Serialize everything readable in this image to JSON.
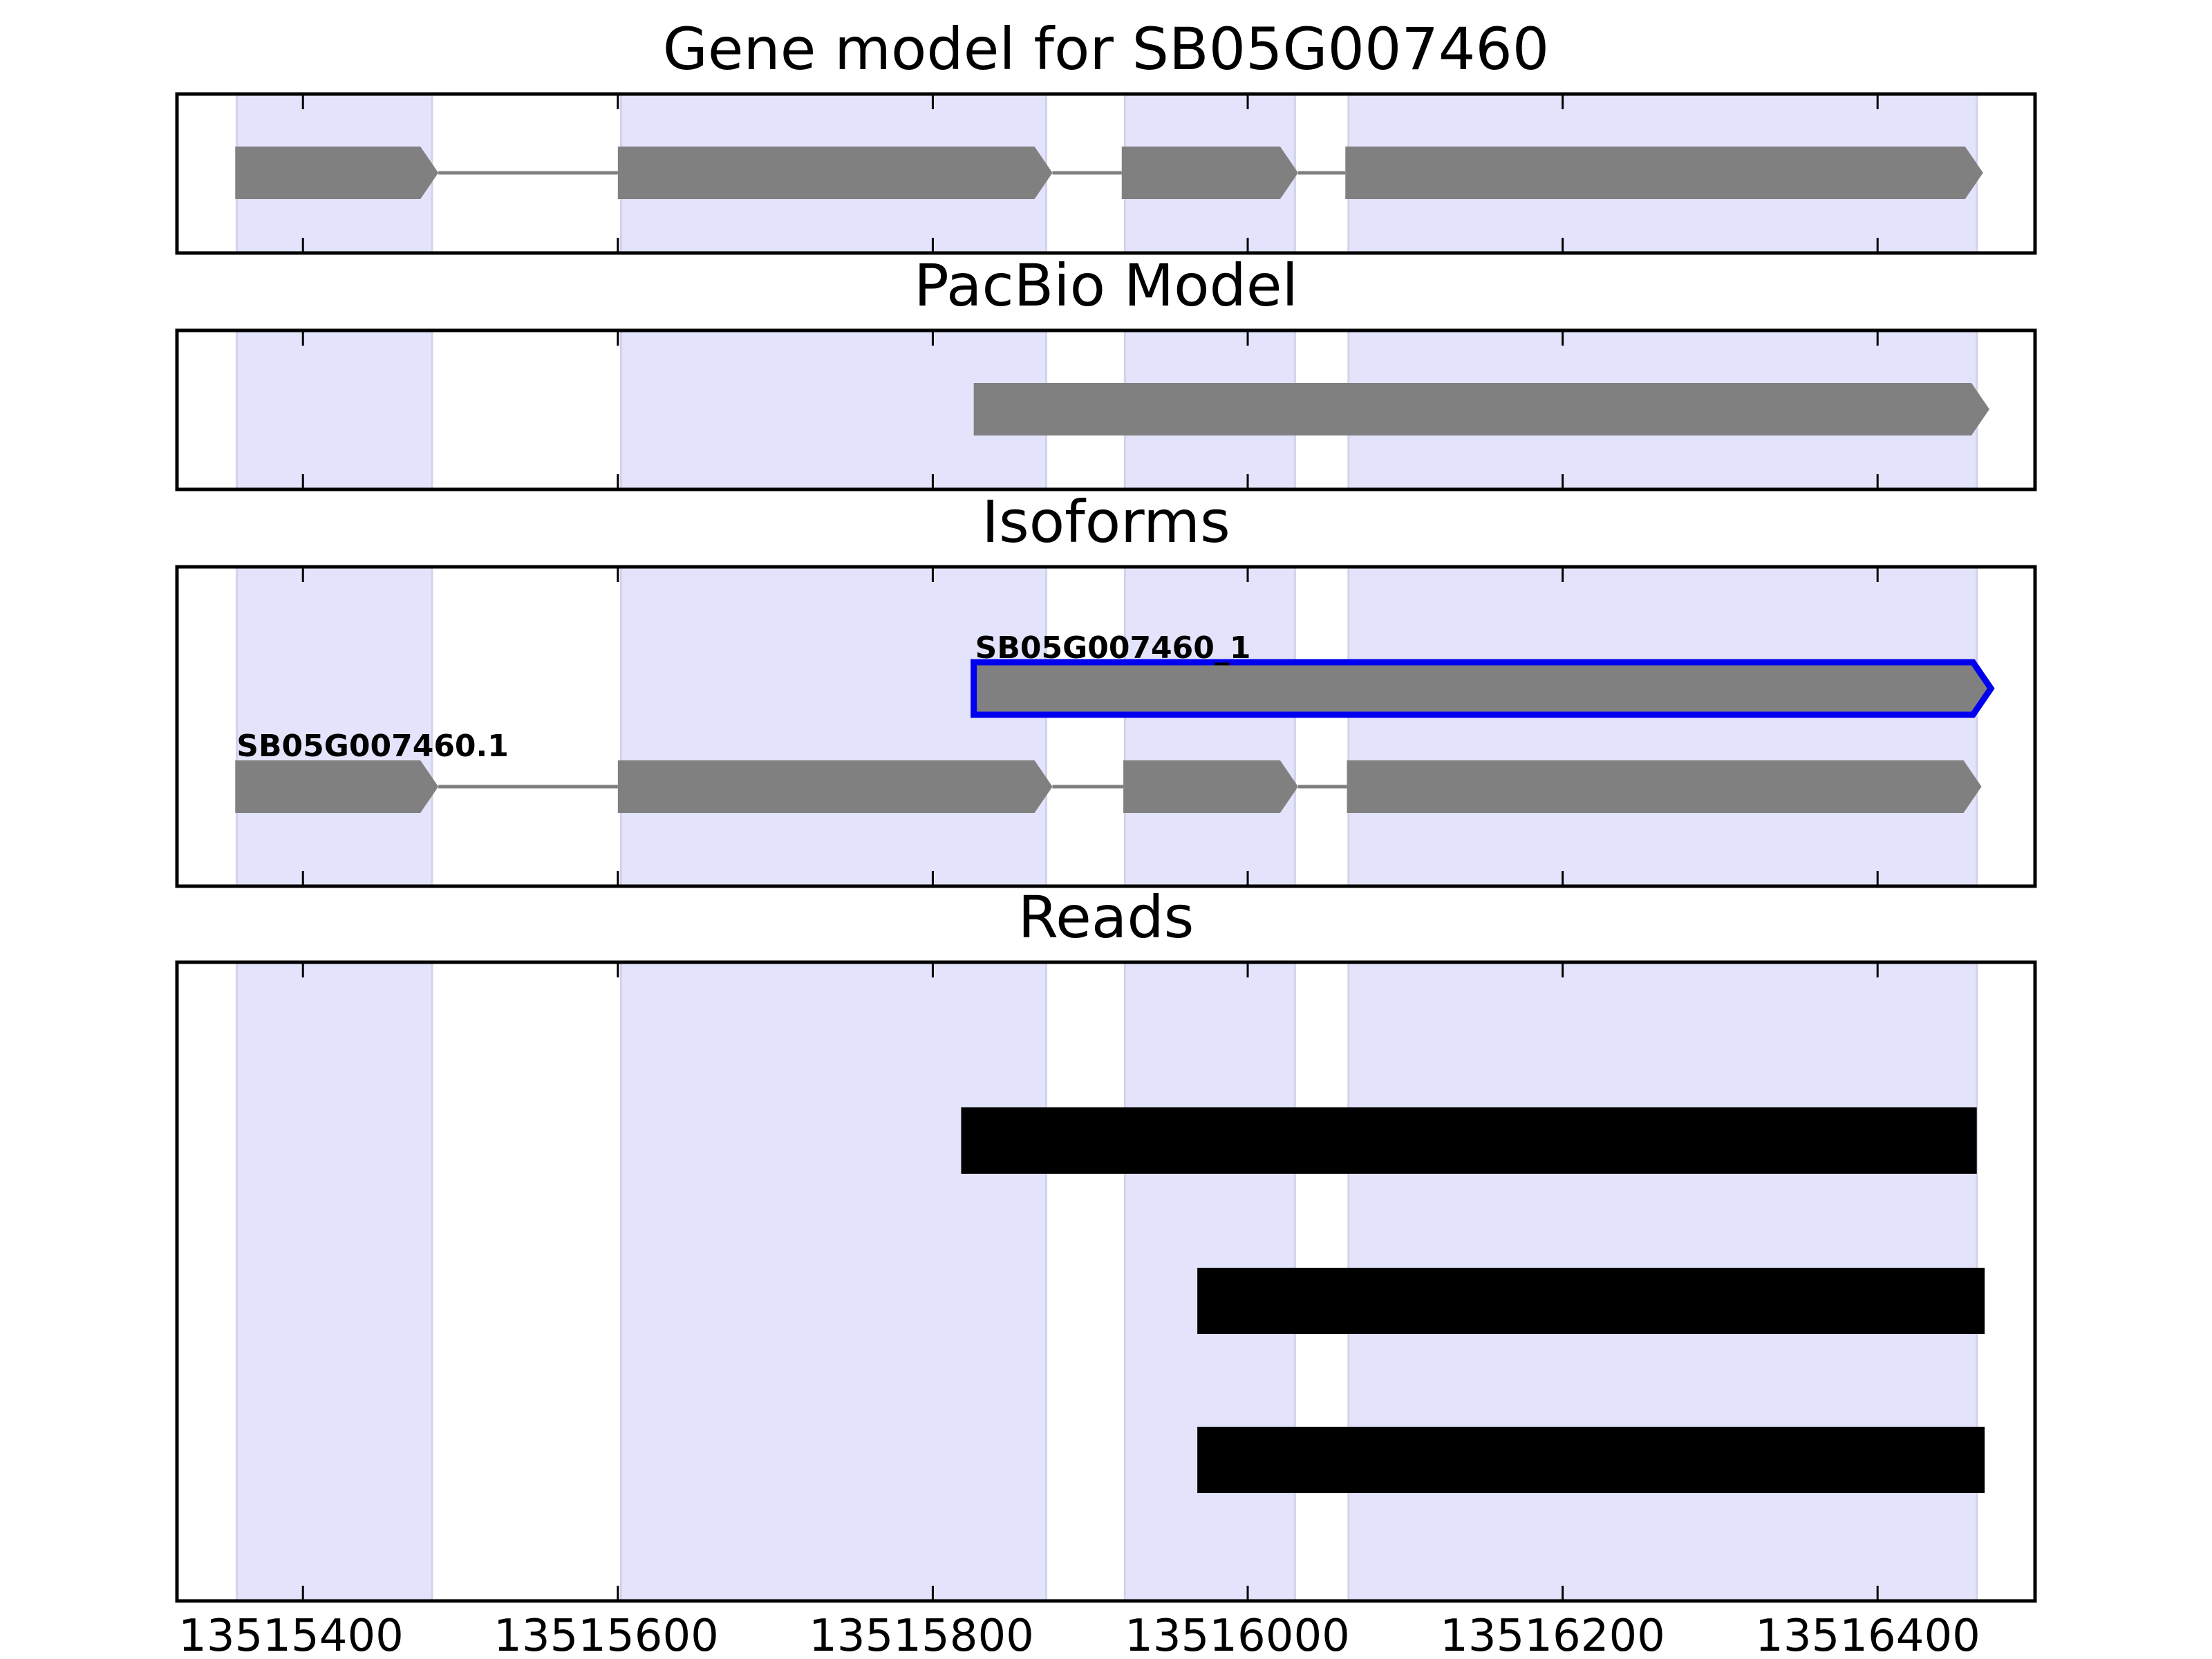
{
  "colors": {
    "exon_band": "#e3e3fc",
    "exon_band_edge": "#d2d2ea",
    "exon": "#808080",
    "intron": "#808080",
    "highlight_outline": "#0000ee",
    "read": "#000000",
    "frame": "#000000"
  },
  "chart_data": {
    "type": "gene-track",
    "x_range": [
      13515320,
      13516500
    ],
    "x_ticks": [
      13515400,
      13515600,
      13515800,
      13516000,
      13516200,
      13516400
    ],
    "x_tick_labels": [
      "13515400",
      "13515600",
      "13515800",
      "13516000",
      "13516200",
      "13516400"
    ],
    "exon_bands": [
      [
        13515358,
        13515482
      ],
      [
        13515602,
        13515872
      ],
      [
        13515922,
        13516030
      ],
      [
        13516064,
        13516463
      ]
    ],
    "panels": [
      {
        "title": "Gene model for SB05G007460",
        "tracks": [
          {
            "label": "",
            "highlight": false,
            "exons": [
              [
                13515357,
                13515486
              ],
              [
                13515600,
                13515876
              ],
              [
                13515920,
                13516032
              ],
              [
                13516062,
                13516467
              ]
            ]
          }
        ]
      },
      {
        "title": "PacBio Model",
        "tracks": [
          {
            "label": "",
            "highlight": false,
            "exons": [
              [
                13515826,
                13516471
              ]
            ]
          }
        ]
      },
      {
        "title": "Isoforms",
        "tracks": [
          {
            "label": "SB05G007460_1",
            "highlight": true,
            "exons": [
              [
                13515826,
                13516472
              ]
            ]
          },
          {
            "label": "SB05G007460.1",
            "highlight": false,
            "exons": [
              [
                13515357,
                13515486
              ],
              [
                13515600,
                13515876
              ],
              [
                13515921,
                13516032
              ],
              [
                13516063,
                13516466
              ]
            ]
          }
        ]
      },
      {
        "title": "Reads",
        "reads": [
          [
            13515818,
            13516463
          ],
          [
            13515968,
            13516468
          ],
          [
            13515968,
            13516468
          ]
        ]
      }
    ]
  }
}
